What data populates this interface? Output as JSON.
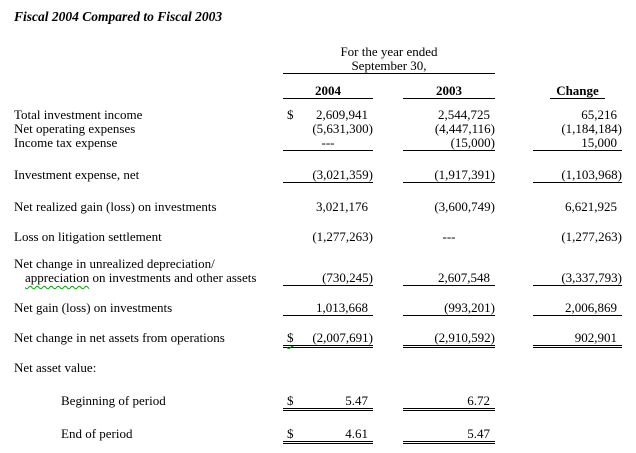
{
  "title": "Fiscal 2004 Compared to Fiscal 2003",
  "table": {
    "period_header_line1": "For the year ended",
    "period_header_line2": "September 30,",
    "columns": [
      "2004",
      "2003",
      "Change"
    ],
    "rows": [
      {
        "label": "Total investment income",
        "dollar": "$",
        "y2004": "2,609,941",
        "y2003": "2,544,725",
        "change": "65,216"
      },
      {
        "label": "Net operating expenses",
        "y2004": "(5,631,300)",
        "y2003": "(4,447,116)",
        "change": "(1,184,184)"
      },
      {
        "label": "Income tax expense",
        "y2004": "---",
        "y2003": "(15,000)",
        "change": "15,000"
      },
      {
        "label": "Investment expense, net",
        "y2004": "(3,021,359)",
        "y2003": "(1,917,391)",
        "change": "(1,103,968)"
      },
      {
        "label": "Net realized gain (loss) on investments",
        "y2004": "3,021,176",
        "y2003": "(3,600,749)",
        "change": "6,621,925"
      },
      {
        "label": "Loss on litigation settlement",
        "y2004": "(1,277,263)",
        "y2003": "---",
        "change": "(1,277,263)"
      },
      {
        "label_line1": "Net change in unrealized depreciation/",
        "label_line2_flagged": "appreciation",
        "label_line2_rest": " on investments and other assets",
        "y2004": "(730,245)",
        "y2003": "2,607,548",
        "change": "(3,337,793)"
      },
      {
        "label": "Net gain (loss) on investments",
        "y2004": "1,013,668",
        "y2003": "(993,201)",
        "change": "2,006,869"
      },
      {
        "label": "Net change in net assets from operations",
        "dollar": "$",
        "y2004": "(2,007,691)",
        "y2003": "(2,910,592)",
        "change": "902,901"
      },
      {
        "label": "Net asset value:"
      },
      {
        "label": "Beginning of period",
        "dollar": "$",
        "y2004": "5.47",
        "y2003": "6.72"
      },
      {
        "label": "End of period",
        "dollar": "$",
        "y2004": "4.61",
        "y2003": "5.47"
      }
    ]
  },
  "spellcheck_squiggle_color": "#00a000"
}
